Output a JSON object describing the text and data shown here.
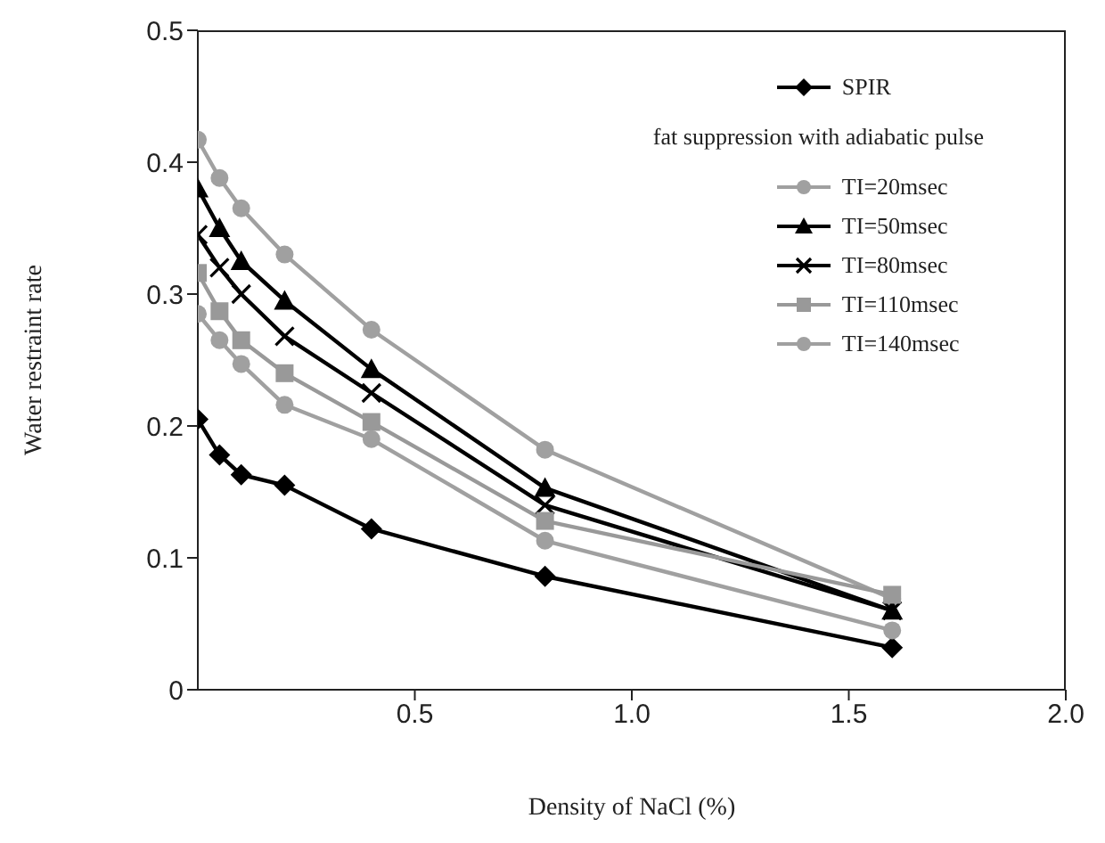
{
  "chart_data": {
    "type": "line",
    "xlabel": "Density of NaCl (%)",
    "ylabel": "Water restraint rate",
    "xlim": [
      0,
      2
    ],
    "xticks": [
      0.5,
      {
        "value": 1,
        "label": "1.0"
      },
      1.5,
      {
        "value": 2,
        "label": "2.0"
      }
    ],
    "ylim": [
      0,
      0.5
    ],
    "yticks": [
      0,
      0.1,
      0.2,
      0.3,
      0.4,
      0.5
    ],
    "x": [
      0,
      0.05,
      0.1,
      0.2,
      0.4,
      0.8,
      1.6
    ],
    "legend": "top right",
    "grid": false,
    "annotations": [
      "fat suppression with adiabatic pulse"
    ],
    "series": [
      {
        "name": "SPIR",
        "color": "#000000",
        "marker": "diamond",
        "values": [
          0.205,
          0.178,
          0.163,
          0.155,
          0.122,
          0.086,
          0.032
        ]
      },
      {
        "name": "TI=20msec",
        "color": "#a0a0a0",
        "marker": "circle",
        "values": [
          0.417,
          0.388,
          0.365,
          0.33,
          0.273,
          0.182,
          0.069
        ]
      },
      {
        "name": "TI=50msec",
        "color": "#000000",
        "marker": "triangle",
        "values": [
          0.38,
          0.35,
          0.325,
          0.295,
          0.243,
          0.153,
          0.06
        ]
      },
      {
        "name": "TI=80msec",
        "color": "#000000",
        "marker": "cross",
        "values": [
          0.345,
          0.32,
          0.3,
          0.268,
          0.225,
          0.14,
          0.06
        ]
      },
      {
        "name": "TI=110msec",
        "color": "#999999",
        "marker": "square",
        "values": [
          0.316,
          0.287,
          0.265,
          0.24,
          0.203,
          0.128,
          0.072
        ]
      },
      {
        "name": "TI=140msec",
        "color": "#a0a0a0",
        "marker": "circle",
        "values": [
          0.285,
          0.265,
          0.247,
          0.216,
          0.19,
          0.113,
          0.045
        ]
      }
    ]
  }
}
